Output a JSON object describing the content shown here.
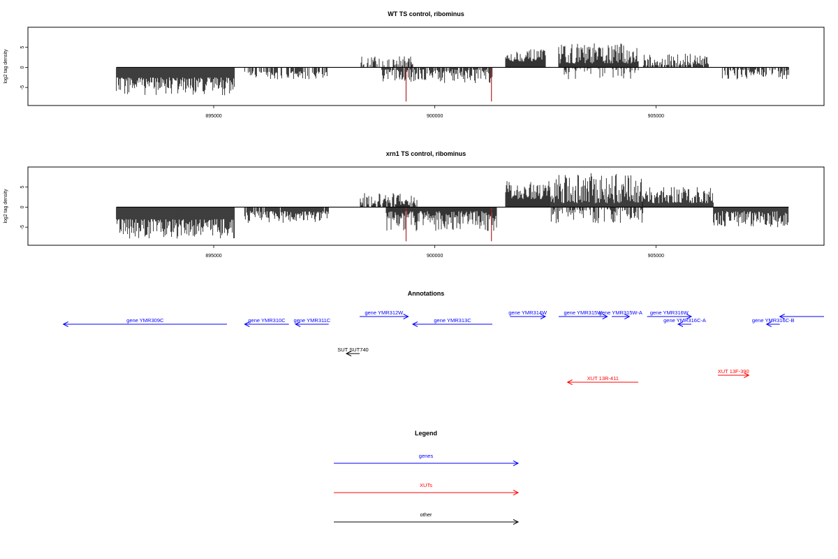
{
  "chart_data": [
    {
      "type": "bar",
      "title": "WT TS control, ribominus",
      "ylabel": "log2 tag density",
      "xlim": [
        890800,
        908800
      ],
      "ylim": [
        -9.5,
        10
      ],
      "xticks": [
        895000,
        900000,
        905000
      ],
      "yticks": [
        -5,
        0,
        5
      ],
      "colors": {
        "signal": "#000000",
        "highlight": "#b22222"
      },
      "segments": [
        {
          "from": 892800,
          "to": 895470,
          "strand": "minus",
          "min": 2.5,
          "max": 7.0
        },
        {
          "from": 895700,
          "to": 897600,
          "strand": "minus",
          "min": 1.0,
          "max": 3.0,
          "density": 0.5
        },
        {
          "from": 898300,
          "to": 899500,
          "strand": "plus",
          "min": 0.5,
          "max": 3.0,
          "density": 0.6
        },
        {
          "from": 898800,
          "to": 901300,
          "strand": "minus",
          "min": 0.5,
          "max": 4.0,
          "density": 0.8
        },
        {
          "from": 901600,
          "to": 902500,
          "strand": "plus",
          "min": 1.5,
          "max": 4.5
        },
        {
          "from": 902800,
          "to": 904600,
          "strand": "plus",
          "min": 1.0,
          "max": 6.0
        },
        {
          "from": 902800,
          "to": 904600,
          "strand": "minus",
          "min": 0.3,
          "max": 3.0,
          "density": 0.3
        },
        {
          "from": 904700,
          "to": 906200,
          "strand": "plus",
          "min": 0.5,
          "max": 3.5,
          "density": 0.8
        },
        {
          "from": 906500,
          "to": 908000,
          "strand": "minus",
          "min": 0.5,
          "max": 3.0,
          "density": 0.6
        }
      ],
      "highlights": [
        {
          "x": 899350,
          "value": -8.5
        },
        {
          "x": 901280,
          "value": -8.5
        }
      ]
    },
    {
      "type": "bar",
      "title": "xrn1 TS control, ribominus",
      "ylabel": "log2 tag density",
      "xlim": [
        890800,
        908800
      ],
      "ylim": [
        -9.5,
        10
      ],
      "xticks": [
        895000,
        900000,
        905000
      ],
      "yticks": [
        -5,
        0,
        5
      ],
      "colors": {
        "signal": "#000000",
        "highlight": "#b22222"
      },
      "segments": [
        {
          "from": 892800,
          "to": 895470,
          "strand": "minus",
          "min": 3.0,
          "max": 8.0
        },
        {
          "from": 895700,
          "to": 897600,
          "strand": "minus",
          "min": 1.0,
          "max": 4.0,
          "density": 0.9
        },
        {
          "from": 898300,
          "to": 899600,
          "strand": "plus",
          "min": 0.5,
          "max": 3.5,
          "density": 0.8
        },
        {
          "from": 898900,
          "to": 901400,
          "strand": "minus",
          "min": 1.0,
          "max": 6.0
        },
        {
          "from": 901600,
          "to": 902600,
          "strand": "plus",
          "min": 2.0,
          "max": 6.5
        },
        {
          "from": 902600,
          "to": 904700,
          "strand": "plus",
          "min": 1.0,
          "max": 8.5
        },
        {
          "from": 902600,
          "to": 904700,
          "strand": "minus",
          "min": 0.5,
          "max": 4.0,
          "density": 0.5
        },
        {
          "from": 904700,
          "to": 906300,
          "strand": "plus",
          "min": 1.0,
          "max": 5.0
        },
        {
          "from": 906300,
          "to": 908000,
          "strand": "minus",
          "min": 1.0,
          "max": 5.0
        }
      ],
      "highlights": [
        {
          "x": 899350,
          "value": -8.5
        },
        {
          "x": 901280,
          "value": -8.5
        }
      ]
    }
  ],
  "annotations": {
    "title": "Annotations",
    "xlim": [
      890800,
      908800
    ],
    "items": [
      {
        "label": "gene YMR309C",
        "start": 891600,
        "end": 895300,
        "strand": "-",
        "row": 1,
        "type": "gene"
      },
      {
        "label": "gene YMR310C",
        "start": 895700,
        "end": 896700,
        "strand": "-",
        "row": 1,
        "type": "gene"
      },
      {
        "label": "gene YMR311C",
        "start": 896850,
        "end": 897600,
        "strand": "-",
        "row": 1,
        "type": "gene"
      },
      {
        "label": "gene YMR312W",
        "start": 898300,
        "end": 899400,
        "strand": "+",
        "row": 0,
        "type": "gene"
      },
      {
        "label": "gene YMR313C",
        "start": 899500,
        "end": 901300,
        "strand": "-",
        "row": 1,
        "type": "gene"
      },
      {
        "label": "gene YMR314W",
        "start": 901700,
        "end": 902500,
        "strand": "+",
        "row": 0,
        "type": "gene"
      },
      {
        "label": "gene YMR315W",
        "start": 902800,
        "end": 903900,
        "strand": "+",
        "row": 0,
        "type": "gene"
      },
      {
        "label": "gene YMR315W-A",
        "start": 904000,
        "end": 904400,
        "strand": "+",
        "row": 0,
        "type": "gene"
      },
      {
        "label": "gene YMR316W",
        "start": 904800,
        "end": 905800,
        "strand": "+",
        "row": 0,
        "type": "gene"
      },
      {
        "label": "gene YMR316C-A",
        "start": 905500,
        "end": 905800,
        "strand": "-",
        "row": 1,
        "type": "gene"
      },
      {
        "label": "gene YMR316C-B",
        "start": 907500,
        "end": 907800,
        "strand": "-",
        "row": 1,
        "type": "gene"
      },
      {
        "label": "",
        "start": 907800,
        "end": 908800,
        "strand": "-",
        "row": 0,
        "type": "gene"
      },
      {
        "label": "SUT SUT740",
        "start": 898000,
        "end": 898300,
        "strand": "-",
        "row": 3,
        "type": "other"
      },
      {
        "label": "XUT 13R-411",
        "start": 903000,
        "end": 904600,
        "strand": "-",
        "row": 5,
        "type": "xut"
      },
      {
        "label": "XUT 13F-390",
        "start": 906400,
        "end": 907100,
        "strand": "+",
        "row": 4,
        "type": "xut"
      }
    ]
  },
  "legend": {
    "title": "Legend",
    "entries": [
      {
        "label": "genes",
        "type": "gene"
      },
      {
        "label": "XUTs",
        "type": "xut"
      },
      {
        "label": "other",
        "type": "other"
      }
    ]
  },
  "colors": {
    "gene": "#0000ff",
    "xut": "#ff0000",
    "other": "#000000"
  }
}
